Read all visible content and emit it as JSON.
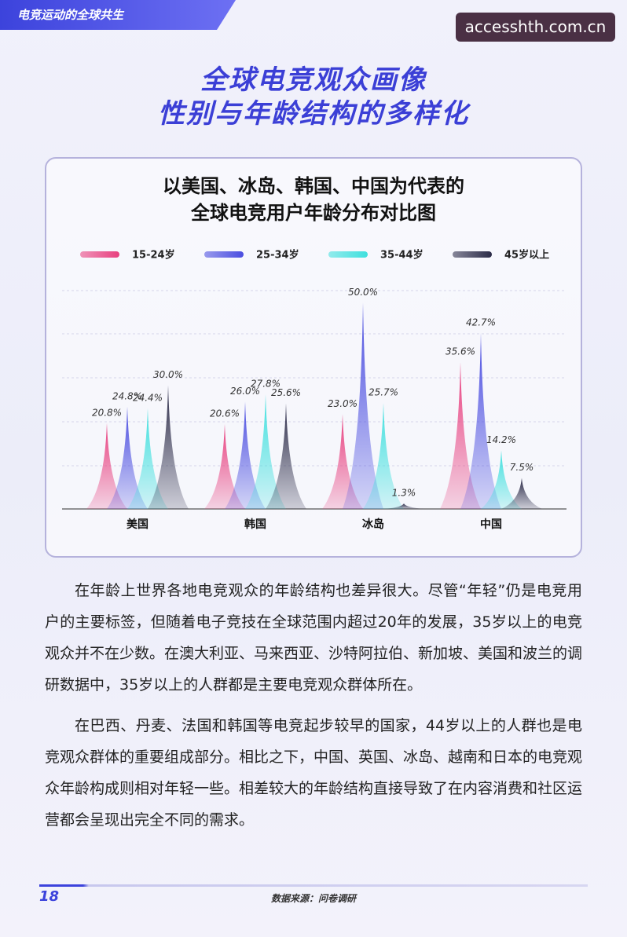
{
  "header": {
    "section": "电竞运动的全球共生",
    "watermark": "accesshth.com.cn",
    "title_lines": [
      "全球电竞观众画像",
      "性别与年龄结构的多样化"
    ]
  },
  "chart_data": {
    "type": "spike",
    "title_lines": [
      "以美国、冰岛、韩国、中国为代表的",
      "全球电竞用户年龄分布对比图"
    ],
    "categories": [
      "美国",
      "韩国",
      "冰岛",
      "中国"
    ],
    "series": [
      {
        "name": "15-24岁",
        "color": "#e8407f",
        "values": [
          20.8,
          20.6,
          23.0,
          35.6
        ],
        "value_labels": [
          "20.8%",
          "20.6%",
          "23.0%",
          "35.6%"
        ]
      },
      {
        "name": "25-34岁",
        "color": "#4a4de0",
        "values": [
          24.8,
          26.0,
          50.0,
          42.7
        ],
        "value_labels": [
          "24.8%",
          "26.0%",
          "50.0%",
          "42.7%"
        ]
      },
      {
        "name": "35-44岁",
        "color": "#3fe0de",
        "values": [
          24.4,
          27.8,
          25.7,
          14.2
        ],
        "value_labels": [
          "24.4%",
          "27.8%",
          "25.7%",
          "14.2%"
        ]
      },
      {
        "name": "45岁以上",
        "color": "#2b2b48",
        "values": [
          30.0,
          25.6,
          1.3,
          7.5
        ],
        "value_labels": [
          "30.0%",
          "25.6%",
          "1.3%",
          "7.5%"
        ]
      }
    ],
    "ylim": [
      0,
      52
    ]
  },
  "paragraphs": [
    "在年龄上世界各地电竞观众的年龄结构也差异很大。尽管“年轻”仍是电竞用户的主要标签，但随着电子竞技在全球范围内超过20年的发展，35岁以上的电竞观众并不在少数。在澳大利亚、马来西亚、沙特阿拉伯、新加坡、美国和波兰的调研数据中，35岁以上的人群都是主要电竞观众群体所在。",
    "在巴西、丹麦、法国和韩国等电竞起步较早的国家，44岁以上的人群也是电竞观众群体的重要组成部分。相比之下，中国、英国、冰岛、越南和日本的电竞观众年龄构成则相对年轻一些。相差较大的年龄结构直接导致了在内容消费和社区运营都会呈现出完全不同的需求。"
  ],
  "footer": {
    "page": "18",
    "source": "数据来源：问卷调研"
  }
}
